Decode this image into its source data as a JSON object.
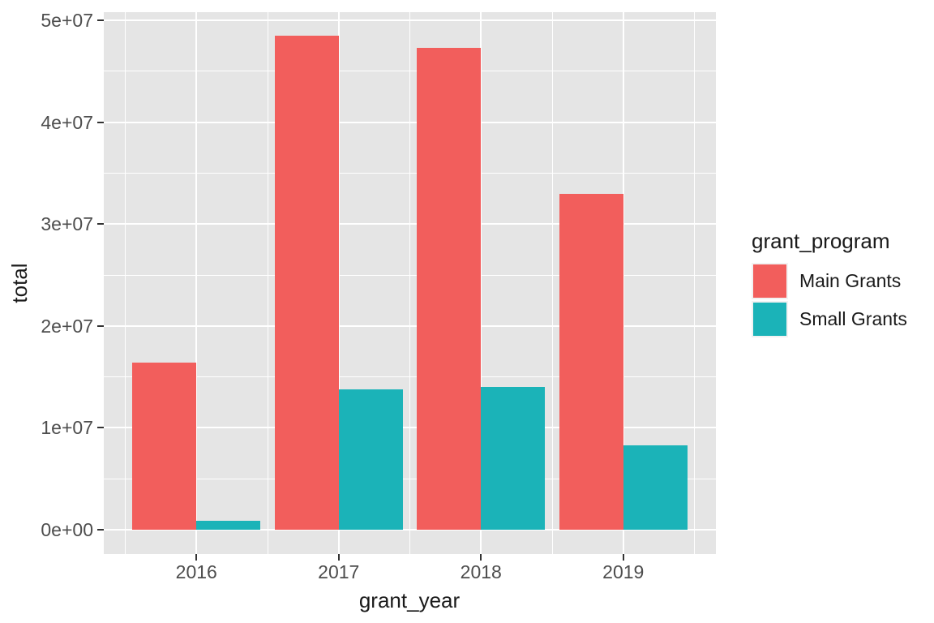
{
  "chart_data": {
    "type": "bar",
    "title": "",
    "xlabel": "grant_year",
    "ylabel": "total",
    "categories": [
      "2016",
      "2017",
      "2018",
      "2019"
    ],
    "series": [
      {
        "name": "Main Grants",
        "color": "#F25E5C",
        "values": [
          16400000,
          48500000,
          47300000,
          33000000
        ]
      },
      {
        "name": "Small Grants",
        "color": "#1BB3B8",
        "values": [
          900000,
          13800000,
          14000000,
          8300000
        ]
      }
    ],
    "ylim": [
      0,
      50000000
    ],
    "y_ticks": [
      {
        "value": 0,
        "label": "0e+00"
      },
      {
        "value": 10000000,
        "label": "1e+07"
      },
      {
        "value": 20000000,
        "label": "2e+07"
      },
      {
        "value": 30000000,
        "label": "3e+07"
      },
      {
        "value": 40000000,
        "label": "4e+07"
      },
      {
        "value": 50000000,
        "label": "5e+07"
      }
    ],
    "y_minor_step": 5000000,
    "grid": "on",
    "legend_position": "right",
    "bar_layout": "dodged"
  },
  "legend": {
    "title": "grant_program",
    "entries": [
      {
        "label": "Main Grants",
        "color": "#F25E5C"
      },
      {
        "label": "Small Grants",
        "color": "#1BB3B8"
      }
    ]
  },
  "colors": {
    "panel_background": "#E5E5E5",
    "gridline": "#FFFFFF",
    "tick_text": "#4D4D4D",
    "axis_title_text": "#1A1A1A",
    "tick_mark": "#333333",
    "legend_key_background": "#F2F2F2",
    "page_background": "#FFFFFF"
  }
}
